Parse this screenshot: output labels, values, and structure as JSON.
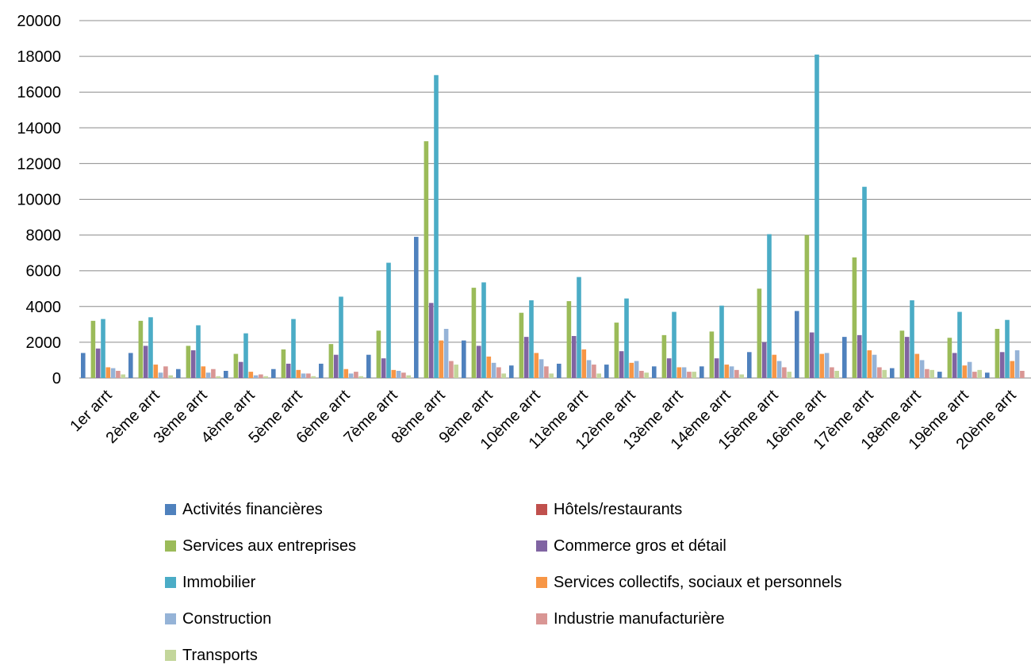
{
  "chart_data": {
    "type": "bar",
    "title": "",
    "xlabel": "",
    "ylabel": "",
    "ylim": [
      0,
      20000
    ],
    "yticks": [
      0,
      2000,
      4000,
      6000,
      8000,
      10000,
      12000,
      14000,
      16000,
      18000,
      20000
    ],
    "grid": true,
    "legend_position": "bottom",
    "categories": [
      "1er arrt",
      "2ème arrt",
      "3ème arrt",
      "4ème arrt",
      "5ème arrt",
      "6ème arrt",
      "7ème arrt",
      "8ème arrt",
      "9ème arrt",
      "10ème arrt",
      "11ème arrt",
      "12ème arrt",
      "13ème arrt",
      "14ème arrt",
      "15ème arrt",
      "16ème arrt",
      "17ème arrt",
      "18ème arrt",
      "19ème arrt",
      "20ème arrt"
    ],
    "series": [
      {
        "name": "Activités financières",
        "color": "#4F81BD",
        "values": [
          1400,
          1400,
          500,
          400,
          500,
          800,
          1300,
          7900,
          2100,
          700,
          800,
          750,
          650,
          650,
          1450,
          3750,
          2300,
          550,
          350,
          300
        ]
      },
      {
        "name": "Hôtels/restaurants",
        "color": "#C0504D",
        "values": [
          0,
          0,
          0,
          0,
          0,
          0,
          0,
          0,
          0,
          0,
          0,
          0,
          0,
          0,
          0,
          0,
          0,
          0,
          0,
          0
        ]
      },
      {
        "name": "Services aux entreprises",
        "color": "#9BBB59",
        "values": [
          3200,
          3200,
          1800,
          1350,
          1600,
          1900,
          2650,
          13250,
          5050,
          3650,
          4300,
          3100,
          2400,
          2600,
          5000,
          8000,
          6750,
          2650,
          2250,
          2750
        ]
      },
      {
        "name": "Commerce gros et détail",
        "color": "#8064A2",
        "values": [
          1650,
          1800,
          1550,
          900,
          800,
          1300,
          1100,
          4200,
          1800,
          2300,
          2350,
          1500,
          1100,
          1100,
          2000,
          2550,
          2400,
          2300,
          1400,
          1450
        ]
      },
      {
        "name": "Immobilier",
        "color": "#4BACC6",
        "values": [
          3300,
          3400,
          2950,
          2500,
          3300,
          4550,
          6450,
          16950,
          5350,
          4350,
          5650,
          4450,
          3700,
          4050,
          8050,
          18100,
          10700,
          4350,
          3700,
          3250
        ]
      },
      {
        "name": "Services collectifs, sociaux et personnels",
        "color": "#F79646",
        "values": [
          600,
          750,
          650,
          350,
          450,
          500,
          450,
          2100,
          1200,
          1400,
          1600,
          850,
          600,
          750,
          1300,
          1350,
          1550,
          1350,
          700,
          950
        ]
      },
      {
        "name": "Construction",
        "color": "#95B3D7",
        "values": [
          550,
          300,
          300,
          150,
          250,
          250,
          400,
          2750,
          850,
          1050,
          1000,
          950,
          600,
          650,
          950,
          1400,
          1300,
          1000,
          900,
          1550
        ]
      },
      {
        "name": "Industrie manufacturière",
        "color": "#D99694",
        "values": [
          400,
          650,
          500,
          200,
          250,
          350,
          300,
          950,
          600,
          650,
          750,
          400,
          350,
          450,
          600,
          600,
          600,
          500,
          350,
          400
        ]
      },
      {
        "name": "Transports",
        "color": "#C3D69B",
        "values": [
          200,
          150,
          100,
          100,
          100,
          100,
          150,
          750,
          250,
          250,
          250,
          300,
          350,
          200,
          350,
          400,
          450,
          450,
          450,
          0
        ]
      }
    ]
  }
}
